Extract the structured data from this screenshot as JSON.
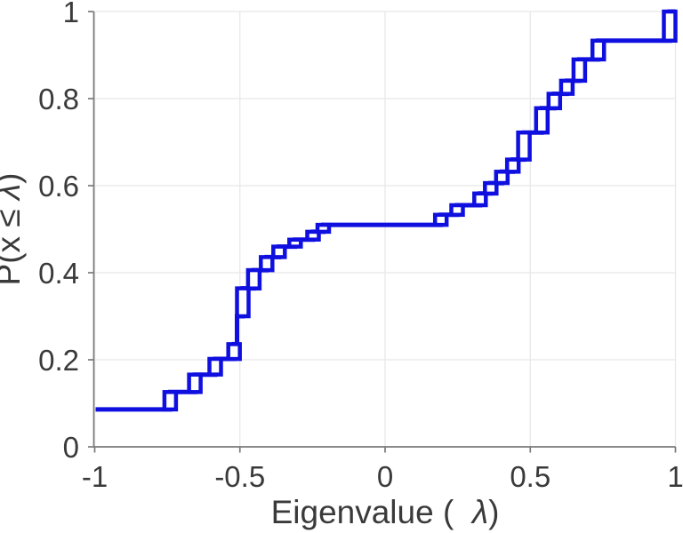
{
  "figure": {
    "background": "#ffffff",
    "description": "Empirical cumulative distribution of eigenvalues, staircase plot with hollow square markers"
  },
  "axes": {
    "xlabel": {
      "prefix": "Eigenvalue (  ",
      "lambda": "λ",
      "suffix": ")"
    },
    "ylabel": {
      "prefix": "P(x ≤ ",
      "lambda": "λ",
      "suffix": ")"
    },
    "x_ticks": [
      {
        "value": -1,
        "label": "-1"
      },
      {
        "value": -0.5,
        "label": "-0.5"
      },
      {
        "value": 0,
        "label": "0"
      },
      {
        "value": 0.5,
        "label": "0.5"
      },
      {
        "value": 1,
        "label": "1"
      }
    ],
    "y_ticks": [
      {
        "value": 0,
        "label": "0"
      },
      {
        "value": 0.2,
        "label": "0.2"
      },
      {
        "value": 0.4,
        "label": "0.4"
      },
      {
        "value": 0.6,
        "label": "0.6"
      },
      {
        "value": 0.8,
        "label": "0.8"
      },
      {
        "value": 1,
        "label": "1"
      }
    ],
    "xlim": [
      -1,
      1
    ],
    "ylim": [
      0,
      1
    ],
    "grid": true
  },
  "style": {
    "line_color": "#0f0fe0",
    "marker_fill": "#ffffff",
    "grid_color": "#e8e8e8",
    "spine_color": "#7a7a7a",
    "text_color": "#3a3a3a",
    "line_width": 5,
    "marker_half_width": 6.5
  },
  "chart_data": {
    "type": "line",
    "subtype": "step-ecdf",
    "title": "",
    "xlabel": "Eigenvalue ( λ)",
    "ylabel": "P(x ≤ λ)",
    "legend": [],
    "x_range": [
      -1,
      1
    ],
    "y_range": [
      0,
      1
    ],
    "start": {
      "x": -1,
      "f": 0.086
    },
    "end_x": 1,
    "steps": [
      {
        "x": -0.74,
        "f": 0.126,
        "boxed": true
      },
      {
        "x": -0.655,
        "f": 0.166,
        "boxed": true
      },
      {
        "x": -0.585,
        "f": 0.202,
        "boxed": true
      },
      {
        "x": -0.52,
        "f": 0.236,
        "boxed": true
      },
      {
        "x": -0.51,
        "f": 0.3,
        "boxed": false
      },
      {
        "x": -0.49,
        "f": 0.364,
        "boxed": true
      },
      {
        "x": -0.452,
        "f": 0.406,
        "boxed": true
      },
      {
        "x": -0.408,
        "f": 0.436,
        "boxed": true
      },
      {
        "x": -0.365,
        "f": 0.46,
        "boxed": true
      },
      {
        "x": -0.31,
        "f": 0.476,
        "boxed": true
      },
      {
        "x": -0.248,
        "f": 0.494,
        "boxed": true
      },
      {
        "x": -0.213,
        "f": 0.51,
        "boxed": true
      },
      {
        "x": 0.192,
        "f": 0.533,
        "boxed": true
      },
      {
        "x": 0.248,
        "f": 0.555,
        "boxed": true
      },
      {
        "x": 0.327,
        "f": 0.582,
        "boxed": true
      },
      {
        "x": 0.364,
        "f": 0.606,
        "boxed": true
      },
      {
        "x": 0.402,
        "f": 0.632,
        "boxed": true
      },
      {
        "x": 0.44,
        "f": 0.66,
        "boxed": true
      },
      {
        "x": 0.478,
        "f": 0.722,
        "boxed": true
      },
      {
        "x": 0.54,
        "f": 0.778,
        "boxed": true
      },
      {
        "x": 0.583,
        "f": 0.811,
        "boxed": true
      },
      {
        "x": 0.626,
        "f": 0.841,
        "boxed": true
      },
      {
        "x": 0.669,
        "f": 0.89,
        "boxed": true
      },
      {
        "x": 0.734,
        "f": 0.933,
        "boxed": true
      },
      {
        "x": 0.98,
        "f": 1.0,
        "boxed": true
      }
    ]
  }
}
